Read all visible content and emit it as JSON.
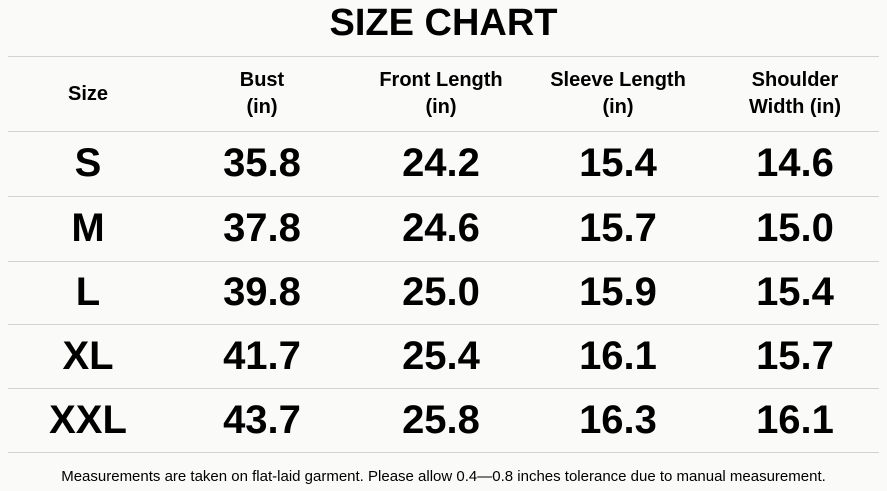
{
  "header": {
    "title": "SIZE CHART"
  },
  "table": {
    "columns": [
      [
        "Size"
      ],
      [
        "Bust",
        "(in)"
      ],
      [
        "Front Length",
        "(in)"
      ],
      [
        "Sleeve Length",
        "(in)"
      ],
      [
        "Shoulder",
        "Width (in)"
      ]
    ],
    "rows": [
      [
        "S",
        "35.8",
        "24.2",
        "15.4",
        "14.6"
      ],
      [
        "M",
        "37.8",
        "24.6",
        "15.7",
        "15.0"
      ],
      [
        "L",
        "39.8",
        "25.0",
        "15.9",
        "15.4"
      ],
      [
        "XL",
        "41.7",
        "25.4",
        "16.1",
        "15.7"
      ],
      [
        "XXL",
        "43.7",
        "25.8",
        "16.3",
        "16.1"
      ]
    ]
  },
  "footer": {
    "note": "Measurements are taken on flat-laid garment. Please allow 0.4—0.8 inches tolerance due to manual measurement."
  }
}
